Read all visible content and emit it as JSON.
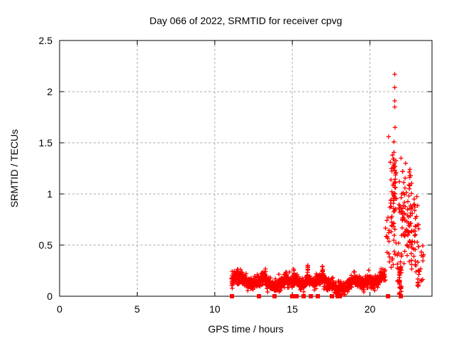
{
  "chart_data": {
    "type": "scatter",
    "title": "Day 066 of 2022, SRMTID for receiver cpvg",
    "xlabel": "GPS time / hours",
    "ylabel": "SRMTID / TECUs",
    "xlim": [
      0,
      24
    ],
    "ylim": [
      0,
      2.5
    ],
    "xticks": [
      0,
      5,
      10,
      15,
      20
    ],
    "yticks": [
      0,
      0.5,
      1,
      1.5,
      2,
      2.5
    ],
    "xtick_labels": [
      "0",
      "5",
      "10",
      "15",
      "20"
    ],
    "ytick_labels": [
      "0",
      "0.5",
      "1",
      "1.5",
      "2",
      "2.5"
    ],
    "grid": true,
    "legend_position": "none",
    "marker_color": "#ff0000",
    "grid_color": "#aaaaaa",
    "axis_color": "#000000",
    "series": [
      {
        "name": "srmtid-quiet-band",
        "marker": "plus",
        "representation": "noisy-band",
        "seed": 42,
        "x_step": 0.009,
        "noise_sd": 0.03,
        "mean_line": [
          [
            11.1,
            0.15
          ],
          [
            11.25,
            0.18
          ],
          [
            11.5,
            0.2
          ],
          [
            11.75,
            0.18
          ],
          [
            11.95,
            0.15
          ],
          [
            12.2,
            0.13
          ],
          [
            12.5,
            0.12
          ],
          [
            12.8,
            0.14
          ],
          [
            13.0,
            0.16
          ],
          [
            13.2,
            0.19
          ],
          [
            13.45,
            0.14
          ],
          [
            13.7,
            0.11
          ],
          [
            14.0,
            0.1
          ],
          [
            14.3,
            0.13
          ],
          [
            14.55,
            0.17
          ],
          [
            14.8,
            0.14
          ],
          [
            15.0,
            0.14
          ],
          [
            15.25,
            0.17
          ],
          [
            15.5,
            0.12
          ],
          [
            15.75,
            0.11
          ],
          [
            16.0,
            0.16
          ],
          [
            16.2,
            0.14
          ],
          [
            16.45,
            0.13
          ],
          [
            16.7,
            0.16
          ],
          [
            16.95,
            0.18
          ],
          [
            17.2,
            0.13
          ],
          [
            17.5,
            0.1
          ],
          [
            17.8,
            0.09
          ],
          [
            18.1,
            0.08
          ],
          [
            18.4,
            0.07
          ],
          [
            18.7,
            0.12
          ],
          [
            19.0,
            0.17
          ],
          [
            19.3,
            0.15
          ],
          [
            19.6,
            0.11
          ],
          [
            19.9,
            0.16
          ],
          [
            20.2,
            0.12
          ],
          [
            20.5,
            0.15
          ],
          [
            20.75,
            0.19
          ],
          [
            21.0,
            0.22
          ]
        ]
      },
      {
        "name": "srmtid-vertical-spreads",
        "marker": "plus",
        "representation": "vertical-spread",
        "seed": 11,
        "spikes": [
          {
            "x": 11.12,
            "y_min": 0.04,
            "y_max": 0.28,
            "count": 10
          },
          {
            "x": 11.5,
            "y_min": 0.15,
            "y_max": 0.26,
            "count": 5
          },
          {
            "x": 13.25,
            "y_min": 0.14,
            "y_max": 0.27,
            "count": 6
          },
          {
            "x": 14.6,
            "y_min": 0.16,
            "y_max": 0.25,
            "count": 5
          },
          {
            "x": 15.1,
            "y_min": 0.17,
            "y_max": 0.3,
            "count": 6
          },
          {
            "x": 16.0,
            "y_min": 0.19,
            "y_max": 0.31,
            "count": 7
          },
          {
            "x": 16.95,
            "y_min": 0.2,
            "y_max": 0.3,
            "count": 6
          },
          {
            "x": 21.9,
            "y_min": 0.0,
            "y_max": 0.24,
            "count": 14
          },
          {
            "x": 23.1,
            "y_min": 0.08,
            "y_max": 0.18,
            "count": 6
          }
        ]
      },
      {
        "name": "srmtid-evening-burst",
        "marker": "plus",
        "representation": "strips",
        "seed": 7,
        "strips": [
          {
            "x_start": 21.0,
            "x_end": 21.3,
            "y_min": 0.25,
            "y_max": 1.05,
            "count": 14
          },
          {
            "x_start": 21.3,
            "x_end": 21.72,
            "y_min": 0.2,
            "y_max": 1.45,
            "count": 62
          },
          {
            "x_start": 21.75,
            "x_end": 22.05,
            "y_min": 0.03,
            "y_max": 0.55,
            "count": 30
          },
          {
            "x_start": 21.8,
            "x_end": 22.1,
            "y_min": 0.55,
            "y_max": 1.1,
            "count": 10
          },
          {
            "x_start": 22.05,
            "x_end": 22.35,
            "y_min": 0.2,
            "y_max": 1.3,
            "count": 30
          },
          {
            "x_start": 22.38,
            "x_end": 22.75,
            "y_min": 0.15,
            "y_max": 1.25,
            "count": 52
          },
          {
            "x_start": 22.8,
            "x_end": 23.15,
            "y_min": 0.1,
            "y_max": 1.0,
            "count": 30
          },
          {
            "x_start": 23.15,
            "x_end": 23.45,
            "y_min": 0.1,
            "y_max": 0.55,
            "count": 14
          }
        ]
      },
      {
        "name": "srmtid-high-outliers",
        "marker": "plus",
        "representation": "points",
        "points": [
          [
            21.6,
            2.17
          ],
          [
            21.6,
            2.04
          ],
          [
            21.6,
            1.91
          ],
          [
            21.6,
            1.85
          ],
          [
            21.62,
            1.65
          ],
          [
            21.2,
            1.56
          ],
          [
            21.55,
            1.51
          ],
          [
            21.45,
            1.38
          ],
          [
            21.5,
            1.34
          ],
          [
            21.57,
            1.3
          ],
          [
            21.62,
            1.27
          ],
          [
            21.5,
            1.26
          ],
          [
            22.0,
            1.35
          ],
          [
            22.1,
            1.22
          ],
          [
            22.3,
            1.3
          ],
          [
            22.58,
            1.24
          ],
          [
            22.62,
            1.18
          ],
          [
            21.9,
            1.12
          ],
          [
            22.85,
            0.95
          ],
          [
            23.0,
            0.78
          ]
        ]
      },
      {
        "name": "zero-flag-markers",
        "marker": "square",
        "representation": "baseline-squares",
        "y": 0,
        "x_values": [
          11.11,
          12.85,
          13.85,
          14.99,
          15.27,
          15.73,
          16.19,
          16.64,
          17.55,
          17.92,
          18.06,
          21.17,
          21.99
        ]
      }
    ]
  }
}
